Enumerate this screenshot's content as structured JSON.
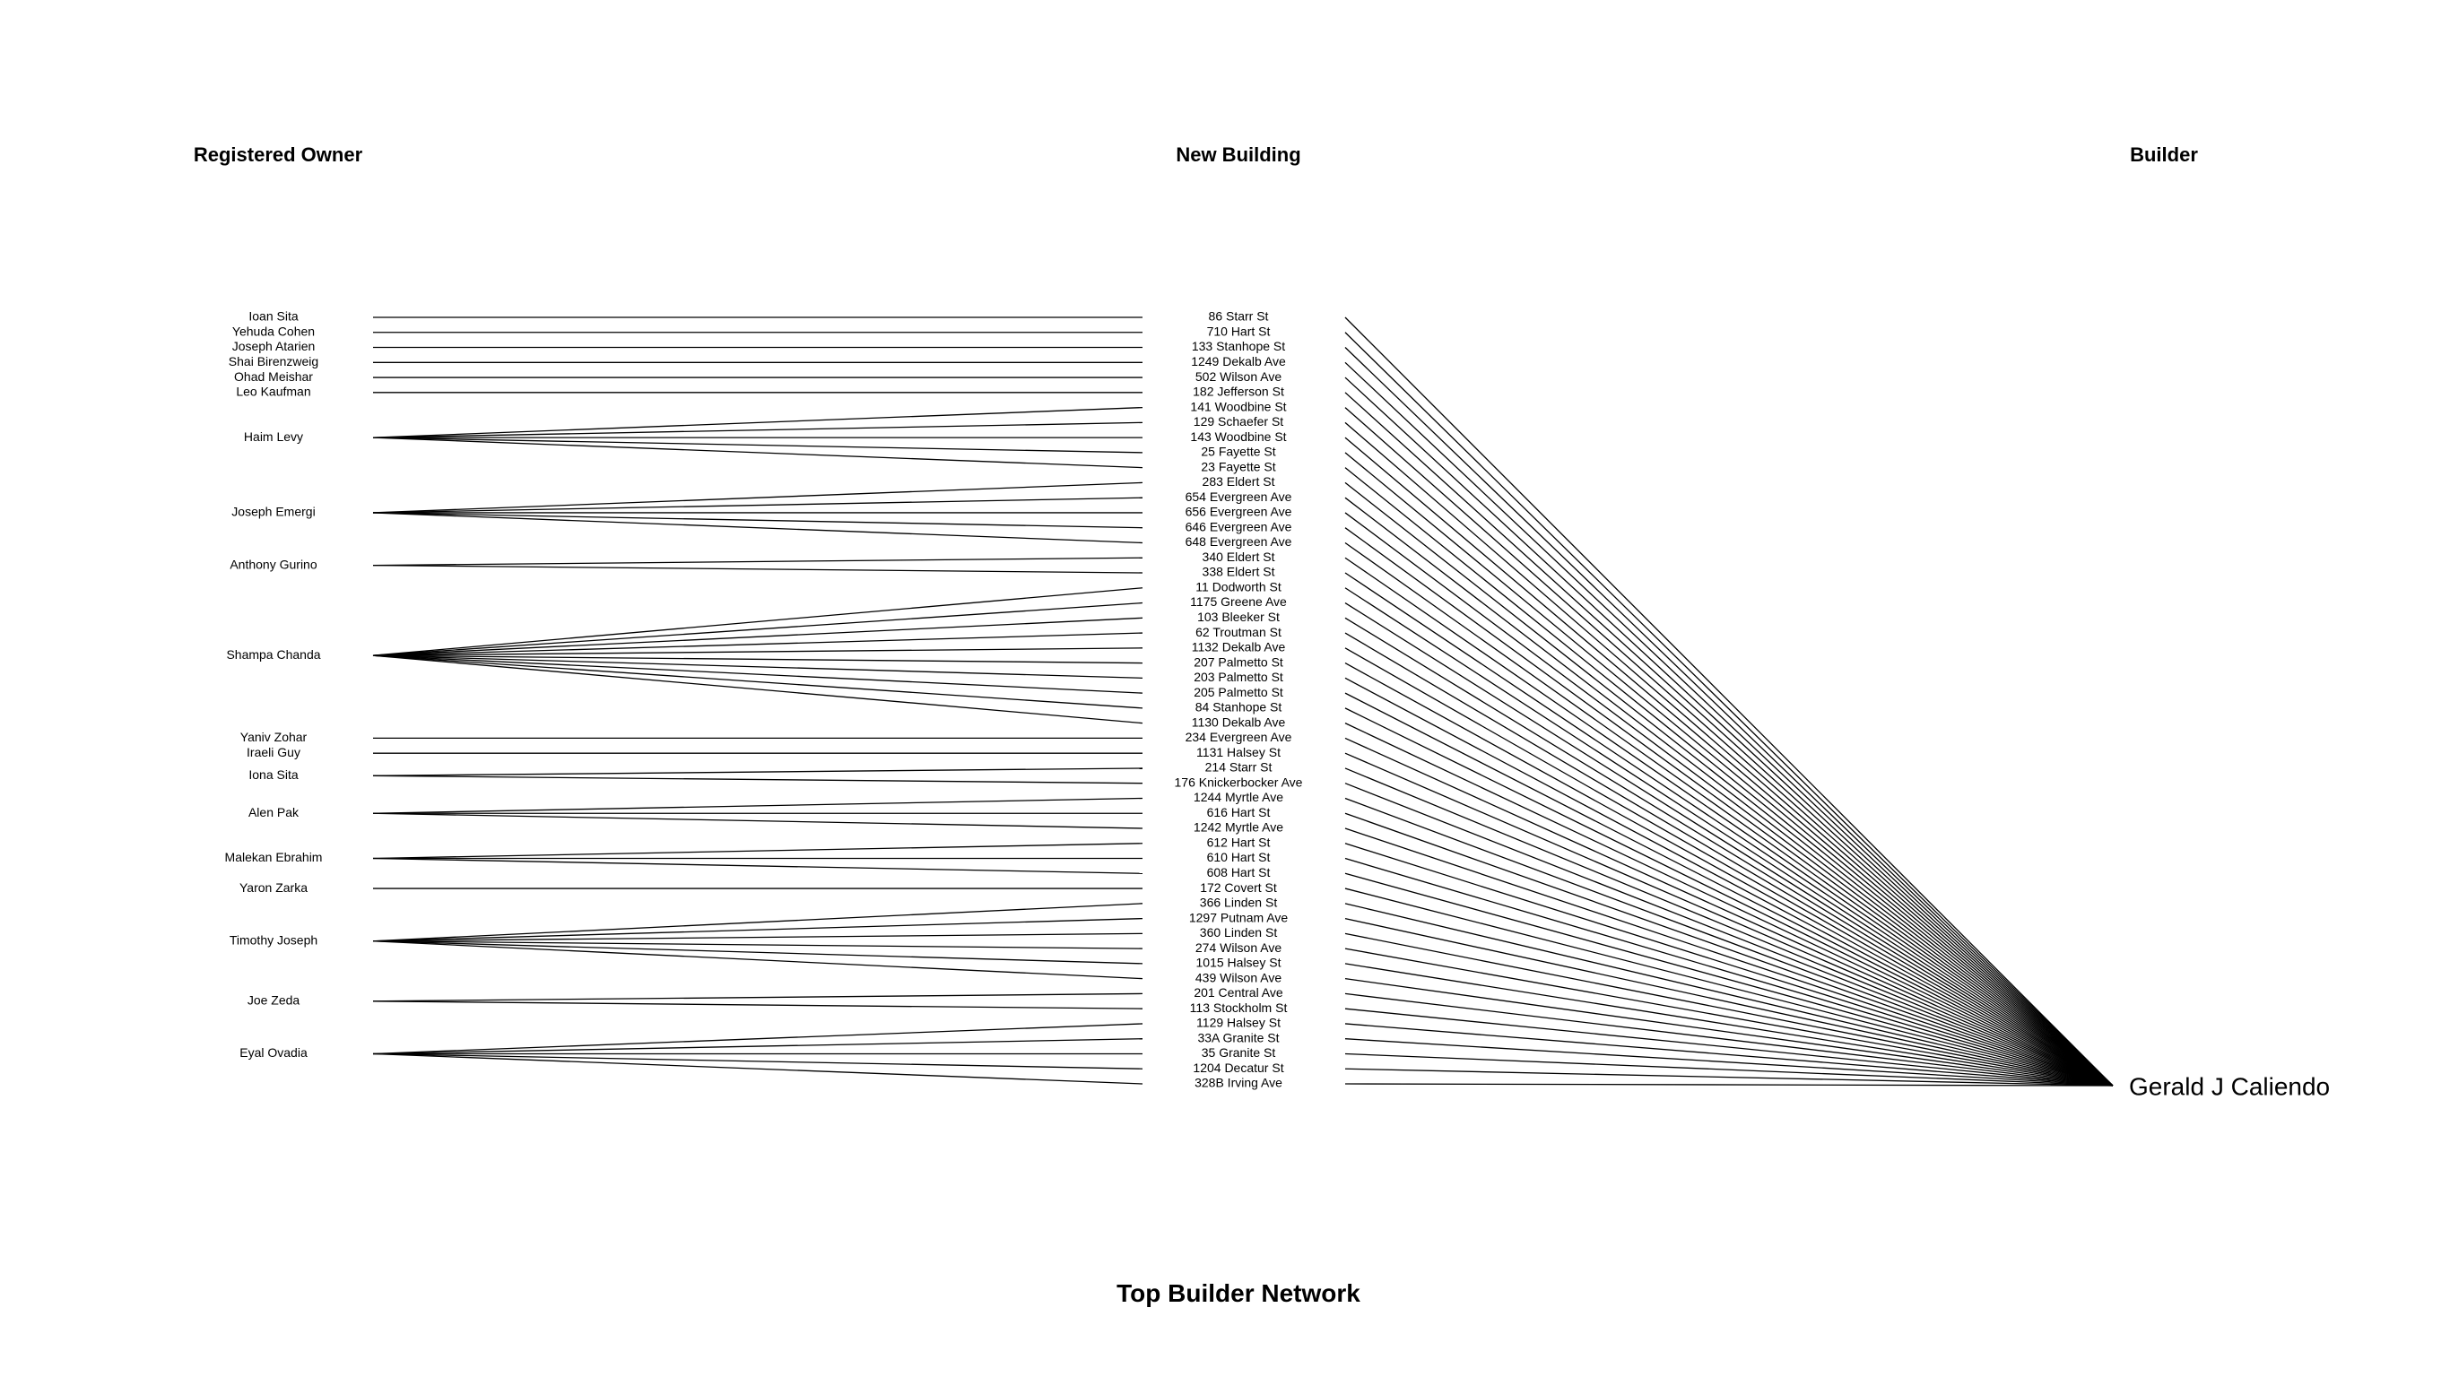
{
  "headers": {
    "owner": "Registered Owner",
    "building": "New Building",
    "builder": "Builder"
  },
  "title": "Top Builder Network",
  "builder": "Gerald J Caliendo",
  "owners": [
    {
      "name": "Ioan Sita",
      "buildings": [
        0
      ]
    },
    {
      "name": "Yehuda Cohen",
      "buildings": [
        1
      ]
    },
    {
      "name": "Joseph Atarien",
      "buildings": [
        2
      ]
    },
    {
      "name": "Shai Birenzweig",
      "buildings": [
        3
      ]
    },
    {
      "name": "Ohad Meishar",
      "buildings": [
        4
      ]
    },
    {
      "name": "Leo Kaufman",
      "buildings": [
        5
      ]
    },
    {
      "name": "Haim Levy",
      "buildings": [
        6,
        7,
        8,
        9,
        10
      ]
    },
    {
      "name": "Joseph Emergi",
      "buildings": [
        11,
        12,
        13,
        14,
        15
      ]
    },
    {
      "name": "Anthony Gurino",
      "buildings": [
        16,
        17
      ]
    },
    {
      "name": "Shampa Chanda",
      "buildings": [
        18,
        19,
        20,
        21,
        22,
        23,
        24,
        25,
        26,
        27
      ]
    },
    {
      "name": "Yaniv Zohar",
      "buildings": [
        28
      ]
    },
    {
      "name": "Iraeli Guy",
      "buildings": [
        29
      ]
    },
    {
      "name": "Iona Sita",
      "buildings": [
        30,
        31
      ]
    },
    {
      "name": "Alen Pak",
      "buildings": [
        32,
        33,
        34
      ]
    },
    {
      "name": "Malekan Ebrahim",
      "buildings": [
        35,
        36,
        37
      ]
    },
    {
      "name": "Yaron Zarka",
      "buildings": [
        38
      ]
    },
    {
      "name": "Timothy Joseph",
      "buildings": [
        39,
        40,
        41,
        42,
        43,
        44
      ]
    },
    {
      "name": "Joe Zeda",
      "buildings": [
        45,
        46
      ]
    },
    {
      "name": "Eyal Ovadia",
      "buildings": [
        47,
        48,
        49,
        50,
        51
      ]
    }
  ],
  "buildings": [
    "86 Starr St",
    "710 Hart St",
    "133 Stanhope St",
    "1249 Dekalb Ave",
    "502 Wilson Ave",
    "182 Jefferson St",
    "141 Woodbine St",
    "129 Schaefer St",
    "143 Woodbine St",
    "25 Fayette St",
    "23 Fayette St",
    "283 Eldert St",
    "654 Evergreen Ave",
    "656 Evergreen Ave",
    "646 Evergreen Ave",
    "648 Evergreen Ave",
    "340 Eldert St",
    "338 Eldert St",
    "11 Dodworth St",
    "1175 Greene Ave",
    "103 Bleeker St",
    "62 Troutman St",
    "1132 Dekalb Ave",
    "207 Palmetto St",
    "203 Palmetto St",
    "205 Palmetto St",
    "84 Stanhope St",
    "1130 Dekalb Ave",
    "234 Evergreen Ave",
    "1131 Halsey St",
    "214 Starr St",
    "176 Knickerbocker Ave",
    "1244 Myrtle Ave",
    "616 Hart St",
    "1242 Myrtle Ave",
    "612 Hart St",
    "610 Hart St",
    "608 Hart St",
    "172 Covert St",
    "366 Linden St",
    "1297 Putnam Ave",
    "360 Linden St",
    "274 Wilson Ave",
    "1015 Halsey St",
    "439 Wilson Ave",
    "201 Central Ave",
    "113 Stockholm St",
    "1129 Halsey St",
    "33A Granite St",
    "35 Granite St",
    "1204 Decatur St",
    "328B Irving Ave"
  ]
}
